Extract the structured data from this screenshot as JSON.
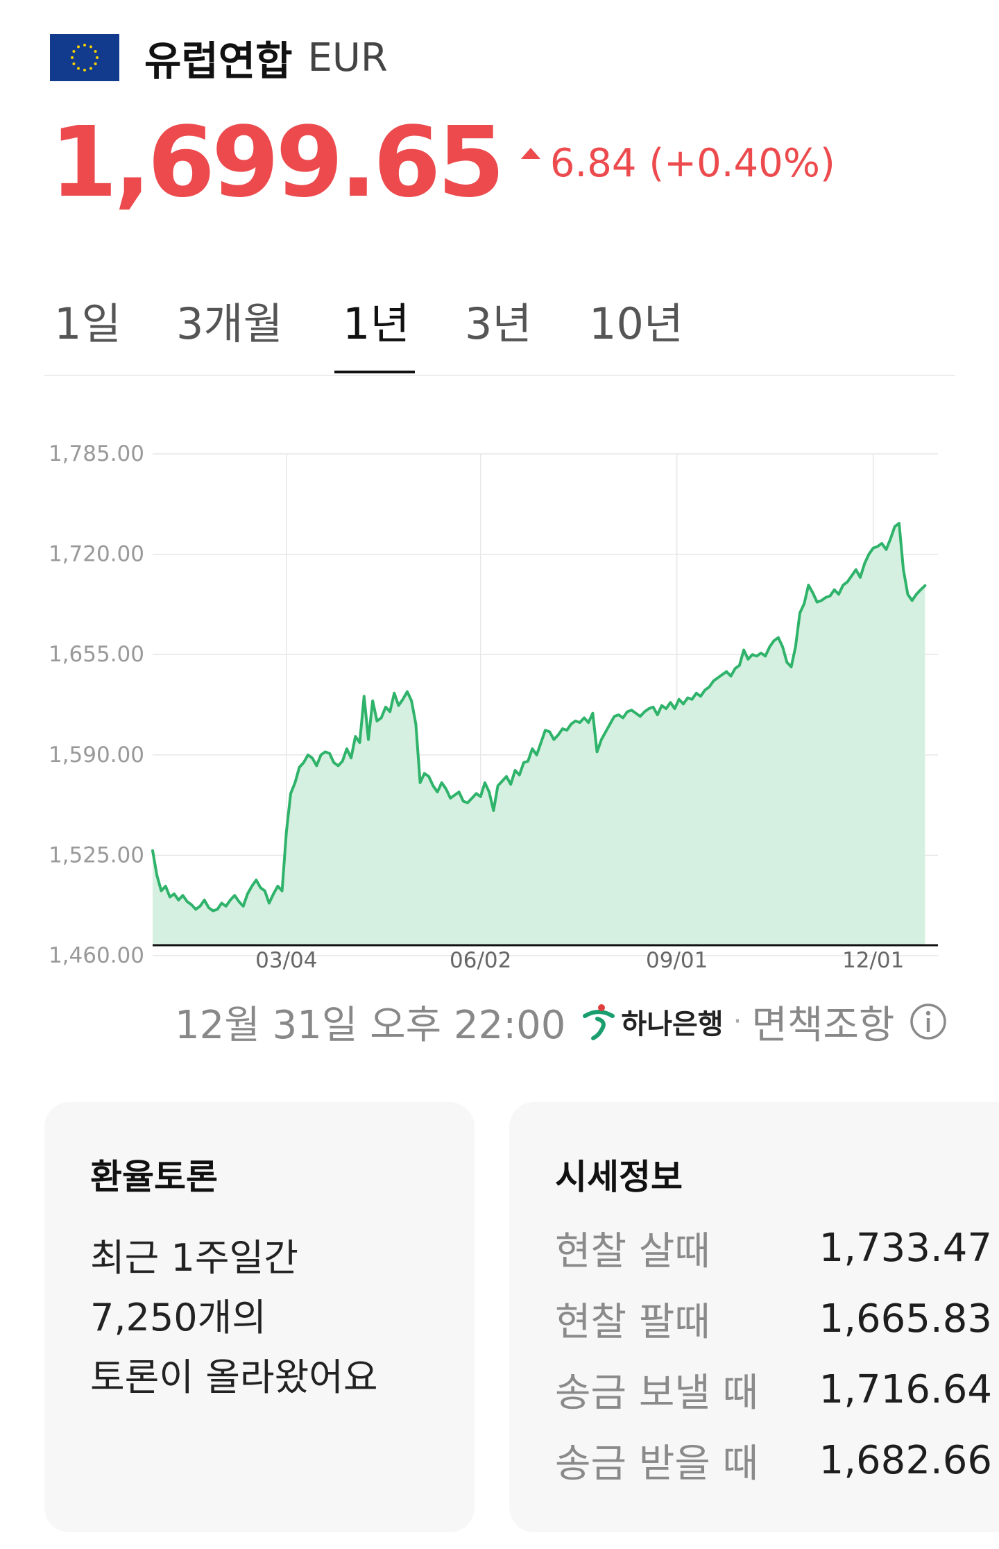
{
  "header": {
    "currency_name": "유럽연합",
    "currency_code": "EUR",
    "rate": "1,699.65",
    "change": "6.84 (+0.40%)",
    "flag_icon": "eu-flag-icon"
  },
  "tabs": [
    {
      "label": "1일"
    },
    {
      "label": "3개월"
    },
    {
      "label": "1년",
      "active": true
    },
    {
      "label": "3년"
    },
    {
      "label": "10년"
    }
  ],
  "footnote": {
    "timestamp": "12월 31일 오후 22:00",
    "bank": "하나은행",
    "separator": "·",
    "disclaimer": "면책조항"
  },
  "discussion": {
    "title": "환율토론",
    "lines": [
      "최근 1주일간",
      "7,250개의",
      "토론이 올라왔어요"
    ]
  },
  "quote": {
    "title": "시세정보",
    "rows": [
      {
        "label": "현찰 살때",
        "value": "1,733.47"
      },
      {
        "label": "현찰 팔때",
        "value": "1,665.83"
      },
      {
        "label": "송금 보낼 때",
        "value": "1,716.64"
      },
      {
        "label": "송금 받을 때",
        "value": "1,682.66"
      }
    ]
  },
  "colors": {
    "accent_red": "#ec4a4d",
    "line_green": "#2fb36a",
    "area_green": "#d5f0e0"
  },
  "chart_data": {
    "type": "area",
    "x_tick_labels": [
      "03/04",
      "06/02",
      "09/01",
      "12/01"
    ],
    "y_tick_labels": [
      "1,785.00",
      "1,720.00",
      "1,655.00",
      "1,590.00",
      "1,525.00",
      "1,460.00"
    ],
    "y_ticks": [
      1785,
      1720,
      1655,
      1590,
      1525,
      1460
    ],
    "ylim": [
      1450,
      1785
    ],
    "grid": true,
    "x_day_range": [
      1,
      365
    ],
    "x_ticks_day": [
      63,
      153,
      244,
      335
    ],
    "series": [
      {
        "values": [
          [
            1,
            1528
          ],
          [
            3,
            1512
          ],
          [
            5,
            1502
          ],
          [
            7,
            1505
          ],
          [
            9,
            1498
          ],
          [
            11,
            1500
          ],
          [
            13,
            1496
          ],
          [
            15,
            1499
          ],
          [
            17,
            1495
          ],
          [
            19,
            1493
          ],
          [
            21,
            1490
          ],
          [
            23,
            1492
          ],
          [
            25,
            1496
          ],
          [
            27,
            1491
          ],
          [
            29,
            1489
          ],
          [
            31,
            1490
          ],
          [
            33,
            1494
          ],
          [
            35,
            1492
          ],
          [
            37,
            1496
          ],
          [
            39,
            1499
          ],
          [
            41,
            1495
          ],
          [
            43,
            1492
          ],
          [
            45,
            1500
          ],
          [
            47,
            1505
          ],
          [
            49,
            1509
          ],
          [
            51,
            1504
          ],
          [
            53,
            1502
          ],
          [
            55,
            1494
          ],
          [
            57,
            1500
          ],
          [
            59,
            1505
          ],
          [
            61,
            1502
          ],
          [
            63,
            1540
          ],
          [
            65,
            1565
          ],
          [
            67,
            1572
          ],
          [
            69,
            1582
          ],
          [
            71,
            1585
          ],
          [
            73,
            1590
          ],
          [
            75,
            1588
          ],
          [
            77,
            1583
          ],
          [
            79,
            1590
          ],
          [
            81,
            1592
          ],
          [
            83,
            1591
          ],
          [
            85,
            1585
          ],
          [
            87,
            1583
          ],
          [
            89,
            1586
          ],
          [
            91,
            1594
          ],
          [
            93,
            1588
          ],
          [
            95,
            1602
          ],
          [
            97,
            1598
          ],
          [
            99,
            1628
          ],
          [
            101,
            1600
          ],
          [
            103,
            1625
          ],
          [
            105,
            1612
          ],
          [
            107,
            1614
          ],
          [
            109,
            1621
          ],
          [
            111,
            1618
          ],
          [
            113,
            1630
          ],
          [
            115,
            1622
          ],
          [
            117,
            1626
          ],
          [
            119,
            1631
          ],
          [
            121,
            1625
          ],
          [
            123,
            1610
          ],
          [
            125,
            1572
          ],
          [
            127,
            1578
          ],
          [
            129,
            1576
          ],
          [
            131,
            1570
          ],
          [
            133,
            1566
          ],
          [
            135,
            1572
          ],
          [
            137,
            1568
          ],
          [
            139,
            1562
          ],
          [
            141,
            1564
          ],
          [
            143,
            1566
          ],
          [
            145,
            1560
          ],
          [
            147,
            1559
          ],
          [
            149,
            1562
          ],
          [
            151,
            1565
          ],
          [
            153,
            1563
          ],
          [
            155,
            1572
          ],
          [
            157,
            1566
          ],
          [
            159,
            1554
          ],
          [
            161,
            1570
          ],
          [
            163,
            1573
          ],
          [
            165,
            1576
          ],
          [
            167,
            1571
          ],
          [
            169,
            1580
          ],
          [
            171,
            1577
          ],
          [
            173,
            1585
          ],
          [
            175,
            1586
          ],
          [
            177,
            1594
          ],
          [
            179,
            1590
          ],
          [
            181,
            1598
          ],
          [
            183,
            1606
          ],
          [
            185,
            1605
          ],
          [
            187,
            1600
          ],
          [
            189,
            1603
          ],
          [
            191,
            1607
          ],
          [
            193,
            1606
          ],
          [
            195,
            1610
          ],
          [
            197,
            1612
          ],
          [
            199,
            1611
          ],
          [
            201,
            1614
          ],
          [
            203,
            1611
          ],
          [
            205,
            1617
          ],
          [
            207,
            1592
          ],
          [
            209,
            1600
          ],
          [
            211,
            1605
          ],
          [
            213,
            1610
          ],
          [
            215,
            1615
          ],
          [
            217,
            1616
          ],
          [
            219,
            1614
          ],
          [
            221,
            1618
          ],
          [
            223,
            1619
          ],
          [
            225,
            1617
          ],
          [
            227,
            1615
          ],
          [
            229,
            1618
          ],
          [
            231,
            1620
          ],
          [
            233,
            1621
          ],
          [
            235,
            1616
          ],
          [
            237,
            1622
          ],
          [
            239,
            1620
          ],
          [
            241,
            1624
          ],
          [
            243,
            1620
          ],
          [
            245,
            1626
          ],
          [
            247,
            1623
          ],
          [
            249,
            1627
          ],
          [
            251,
            1626
          ],
          [
            253,
            1630
          ],
          [
            255,
            1628
          ],
          [
            257,
            1632
          ],
          [
            259,
            1634
          ],
          [
            261,
            1638
          ],
          [
            263,
            1640
          ],
          [
            265,
            1642
          ],
          [
            267,
            1644
          ],
          [
            269,
            1641
          ],
          [
            271,
            1646
          ],
          [
            273,
            1648
          ],
          [
            275,
            1658
          ],
          [
            277,
            1652
          ],
          [
            279,
            1655
          ],
          [
            281,
            1654
          ],
          [
            283,
            1656
          ],
          [
            285,
            1654
          ],
          [
            287,
            1660
          ],
          [
            289,
            1664
          ],
          [
            291,
            1666
          ],
          [
            293,
            1660
          ],
          [
            295,
            1650
          ],
          [
            297,
            1647
          ],
          [
            299,
            1660
          ],
          [
            301,
            1682
          ],
          [
            303,
            1688
          ],
          [
            305,
            1700
          ],
          [
            307,
            1695
          ],
          [
            309,
            1689
          ],
          [
            311,
            1690
          ],
          [
            313,
            1692
          ],
          [
            315,
            1693
          ],
          [
            317,
            1697
          ],
          [
            319,
            1694
          ],
          [
            321,
            1700
          ],
          [
            323,
            1702
          ],
          [
            325,
            1706
          ],
          [
            327,
            1710
          ],
          [
            329,
            1705
          ],
          [
            331,
            1714
          ],
          [
            333,
            1720
          ],
          [
            335,
            1724
          ],
          [
            337,
            1725
          ],
          [
            339,
            1727
          ],
          [
            341,
            1723
          ],
          [
            343,
            1730
          ],
          [
            345,
            1738
          ],
          [
            347,
            1740
          ],
          [
            349,
            1710
          ],
          [
            351,
            1694
          ],
          [
            353,
            1690
          ],
          [
            355,
            1694
          ],
          [
            357,
            1697
          ],
          [
            359,
            1699.65
          ]
        ]
      }
    ]
  }
}
